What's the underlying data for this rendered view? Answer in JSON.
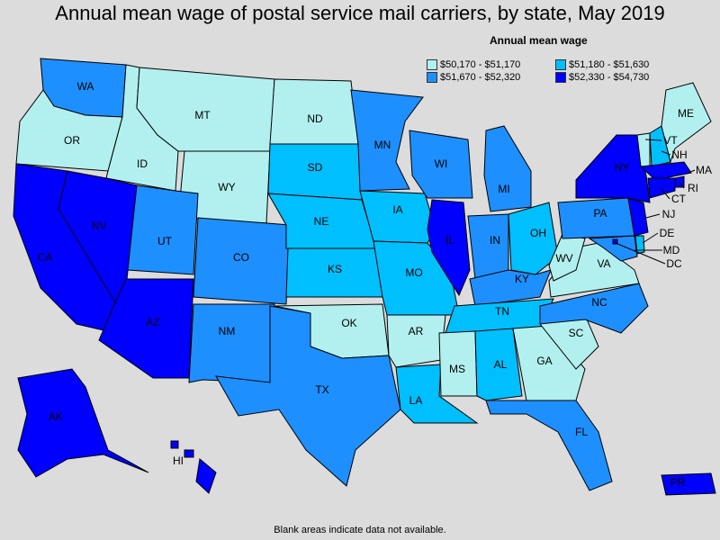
{
  "title": "Annual mean wage of postal service mail carriers, by state, May 2019",
  "legend": {
    "title": "Annual mean wage",
    "items": [
      {
        "label": "$50,170 - $51,170",
        "color": "#b2f0ef"
      },
      {
        "label": "$51,180 - $51,630",
        "color": "#00bfff"
      },
      {
        "label": "$51,670 - $52,320",
        "color": "#1e8fff"
      },
      {
        "label": "$52,330 - $54,730",
        "color": "#0000ff"
      }
    ]
  },
  "footnote": "Blank areas indicate data not available.",
  "colors": {
    "c1": "#b2f0ef",
    "c2": "#00bfff",
    "c3": "#1e8fff",
    "c4": "#0000ff"
  },
  "states": [
    {
      "code": "WA",
      "bin": "c3"
    },
    {
      "code": "OR",
      "bin": "c1"
    },
    {
      "code": "CA",
      "bin": "c4"
    },
    {
      "code": "ID",
      "bin": "c1"
    },
    {
      "code": "NV",
      "bin": "c4"
    },
    {
      "code": "MT",
      "bin": "c1"
    },
    {
      "code": "WY",
      "bin": "c1"
    },
    {
      "code": "UT",
      "bin": "c3"
    },
    {
      "code": "AZ",
      "bin": "c4"
    },
    {
      "code": "CO",
      "bin": "c3"
    },
    {
      "code": "NM",
      "bin": "c3"
    },
    {
      "code": "ND",
      "bin": "c1"
    },
    {
      "code": "SD",
      "bin": "c2"
    },
    {
      "code": "NE",
      "bin": "c2"
    },
    {
      "code": "KS",
      "bin": "c2"
    },
    {
      "code": "OK",
      "bin": "c1"
    },
    {
      "code": "TX",
      "bin": "c3"
    },
    {
      "code": "MN",
      "bin": "c3"
    },
    {
      "code": "IA",
      "bin": "c2"
    },
    {
      "code": "MO",
      "bin": "c2"
    },
    {
      "code": "AR",
      "bin": "c1"
    },
    {
      "code": "LA",
      "bin": "c2"
    },
    {
      "code": "WI",
      "bin": "c3"
    },
    {
      "code": "IL",
      "bin": "c4"
    },
    {
      "code": "MI",
      "bin": "c3"
    },
    {
      "code": "IN",
      "bin": "c3"
    },
    {
      "code": "OH",
      "bin": "c2"
    },
    {
      "code": "KY",
      "bin": "c3"
    },
    {
      "code": "TN",
      "bin": "c2"
    },
    {
      "code": "MS",
      "bin": "c1"
    },
    {
      "code": "AL",
      "bin": "c2"
    },
    {
      "code": "GA",
      "bin": "c1"
    },
    {
      "code": "FL",
      "bin": "c3"
    },
    {
      "code": "SC",
      "bin": "c1"
    },
    {
      "code": "NC",
      "bin": "c3"
    },
    {
      "code": "VA",
      "bin": "c1"
    },
    {
      "code": "WV",
      "bin": "c1"
    },
    {
      "code": "PA",
      "bin": "c3"
    },
    {
      "code": "NY",
      "bin": "c4"
    },
    {
      "code": "VT",
      "bin": "c1"
    },
    {
      "code": "NH",
      "bin": "c2"
    },
    {
      "code": "ME",
      "bin": "c1"
    },
    {
      "code": "MA",
      "bin": "c4"
    },
    {
      "code": "RI",
      "bin": "c4"
    },
    {
      "code": "CT",
      "bin": "c4"
    },
    {
      "code": "NJ",
      "bin": "c4"
    },
    {
      "code": "DE",
      "bin": "c2"
    },
    {
      "code": "MD",
      "bin": "c3"
    },
    {
      "code": "DC",
      "bin": "c4"
    },
    {
      "code": "AK",
      "bin": "c4"
    },
    {
      "code": "HI",
      "bin": "c4"
    },
    {
      "code": "PR",
      "bin": "c4"
    }
  ]
}
